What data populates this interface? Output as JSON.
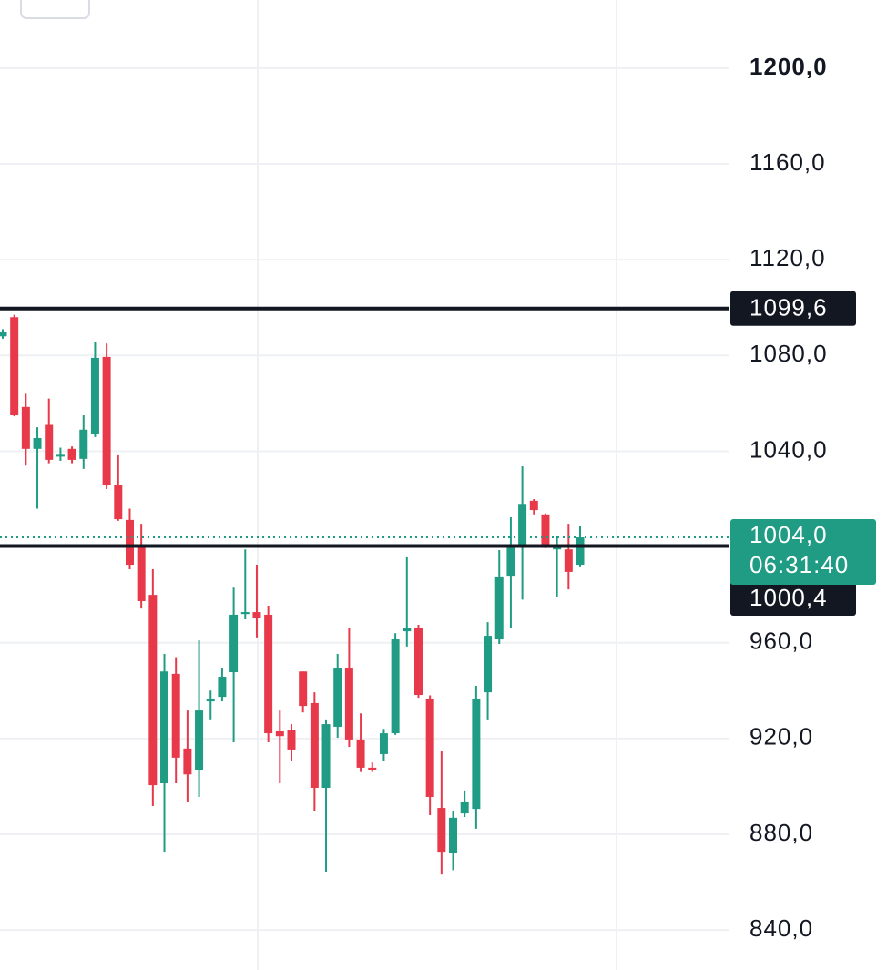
{
  "chart_data": {
    "type": "candlestick",
    "ylim": [
      823.3,
      1228.5
    ],
    "yticks": [
      {
        "value": 840,
        "label": "840,0"
      },
      {
        "value": 880,
        "label": "880,0"
      },
      {
        "value": 920,
        "label": "920,0"
      },
      {
        "value": 960,
        "label": "960,0"
      },
      {
        "value": 1040,
        "label": "1040,0"
      },
      {
        "value": 1080,
        "label": "1080,0"
      },
      {
        "value": 1120,
        "label": "1120,0"
      },
      {
        "value": 1160,
        "label": "1160,0"
      },
      {
        "value": 1200,
        "label": "1200,0"
      }
    ],
    "grid": true,
    "up_color": "#1f9c83",
    "down_color": "#e8394a",
    "open": [
      1088,
      1096,
      1058.5,
      1041,
      1051,
      1038,
      1041,
      1036.8,
      1047.4,
      1079.4,
      1025.7,
      1011.3,
      1000.2,
      980,
      901.3,
      947,
      915.8,
      907,
      935.5,
      937.4,
      947.7,
      972,
      972.8,
      971.7,
      923,
      923.4,
      948,
      934.8,
      899.4,
      924.9,
      949.6,
      919.6,
      907.8,
      913.5,
      922.2,
      964.8,
      966,
      936.7,
      891,
      872,
      888.7,
      890.6,
      939.3,
      961.4,
      988,
      1000.2,
      1019.3,
      1013.6,
      999,
      999,
      992.6
    ],
    "high": [
      1091,
      1097,
      1064,
      1050,
      1062,
      1041.5,
      1042,
      1055,
      1085.5,
      1085,
      1038.3,
      1016,
      1009.7,
      990.7,
      955.3,
      954,
      931.7,
      961,
      940,
      949.6,
      983,
      999,
      992.6,
      975.5,
      931.7,
      926,
      948,
      939.3,
      928,
      955.3,
      966,
      930.5,
      910,
      924,
      964,
      995.7,
      967.5,
      938,
      914.6,
      889.9,
      898.3,
      942,
      968.6,
      998.7,
      1012.4,
      1033.7,
      1020,
      1014,
      1004.8,
      1009.7,
      1008.6
    ],
    "low": [
      1087,
      1054.6,
      1034,
      1016,
      1035,
      1036,
      1035,
      1032.6,
      1045.9,
      1024.2,
      1010.9,
      990.7,
      974.3,
      891.8,
      872.7,
      901.3,
      893.7,
      895.6,
      928,
      935.5,
      918.4,
      969.8,
      962.2,
      918.4,
      901.3,
      910.8,
      930.9,
      889.9,
      864.4,
      920.3,
      916.5,
      906,
      906,
      910.8,
      921.5,
      958.4,
      937,
      888,
      863.2,
      865,
      887.2,
      882.3,
      928,
      959.5,
      966,
      978,
      1013.6,
      999.5,
      979.3,
      982.3,
      991.9
    ],
    "close": [
      1090,
      1055,
      1041,
      1045.5,
      1036.4,
      1038.5,
      1036.4,
      1049,
      1079,
      1025.7,
      1011.6,
      992.6,
      977.4,
      900.5,
      948,
      912,
      905,
      931.7,
      936.7,
      945.8,
      971.7,
      972.8,
      970.5,
      922.2,
      921,
      915.4,
      933.6,
      899.4,
      926,
      949.6,
      919.6,
      907.8,
      907,
      922.2,
      961.4,
      966,
      938.2,
      895.6,
      872.7,
      886.9,
      893.7,
      936.7,
      962.9,
      987.7,
      1000.2,
      1018,
      1015.4,
      1000.2,
      1000,
      989.6,
      1004
    ],
    "price_lines": [
      {
        "value": 1099.6,
        "label": "1099,6"
      },
      {
        "value": 1000.4,
        "label": "1000,4"
      }
    ],
    "last_price": {
      "value": 1004,
      "label": "1004,0",
      "countdown": "06:31:40"
    }
  }
}
